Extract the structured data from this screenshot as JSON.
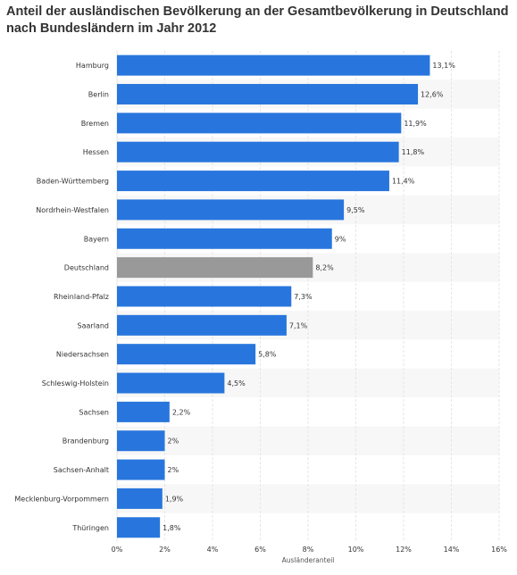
{
  "chart_data": {
    "type": "bar",
    "orientation": "horizontal",
    "title": "Anteil der ausländischen Bevölkerung an der Gesamtbevölkerung in Deutschland nach Bundesländern im Jahr 2012",
    "xlabel": "Ausländeranteil",
    "ylabel": "",
    "xlim": [
      0,
      16
    ],
    "tick_labels": [
      "0%",
      "2%",
      "4%",
      "6%",
      "8%",
      "10%",
      "12%",
      "14%",
      "16%"
    ],
    "categories": [
      "Hamburg",
      "Berlin",
      "Bremen",
      "Hessen",
      "Baden-Württemberg",
      "Nordrhein-Westfalen",
      "Bayern",
      "Deutschland",
      "Rheinland-Pfalz",
      "Saarland",
      "Niedersachsen",
      "Schleswig-Holstein",
      "Sachsen",
      "Brandenburg",
      "Sachsen-Anhalt",
      "Mecklenburg-Vorpommern",
      "Thüringen"
    ],
    "values": [
      13.1,
      12.6,
      11.9,
      11.8,
      11.4,
      9.5,
      9,
      8.2,
      7.3,
      7.1,
      5.8,
      4.5,
      2.2,
      2,
      2,
      1.9,
      1.8
    ],
    "value_labels": [
      "13,1%",
      "12,6%",
      "11,9%",
      "11,8%",
      "11,4%",
      "9,5%",
      "9%",
      "8,2%",
      "7,3%",
      "7,1%",
      "5,8%",
      "4,5%",
      "2,2%",
      "2%",
      "2%",
      "1,9%",
      "1,8%"
    ],
    "highlight_category": "Deutschland",
    "grid": true,
    "legend": "none",
    "colors": {
      "bar": "#2876dd",
      "highlight": "#999999",
      "grid": "#e6e6e6",
      "band": "#f7f7f7",
      "text": "#333333"
    }
  }
}
